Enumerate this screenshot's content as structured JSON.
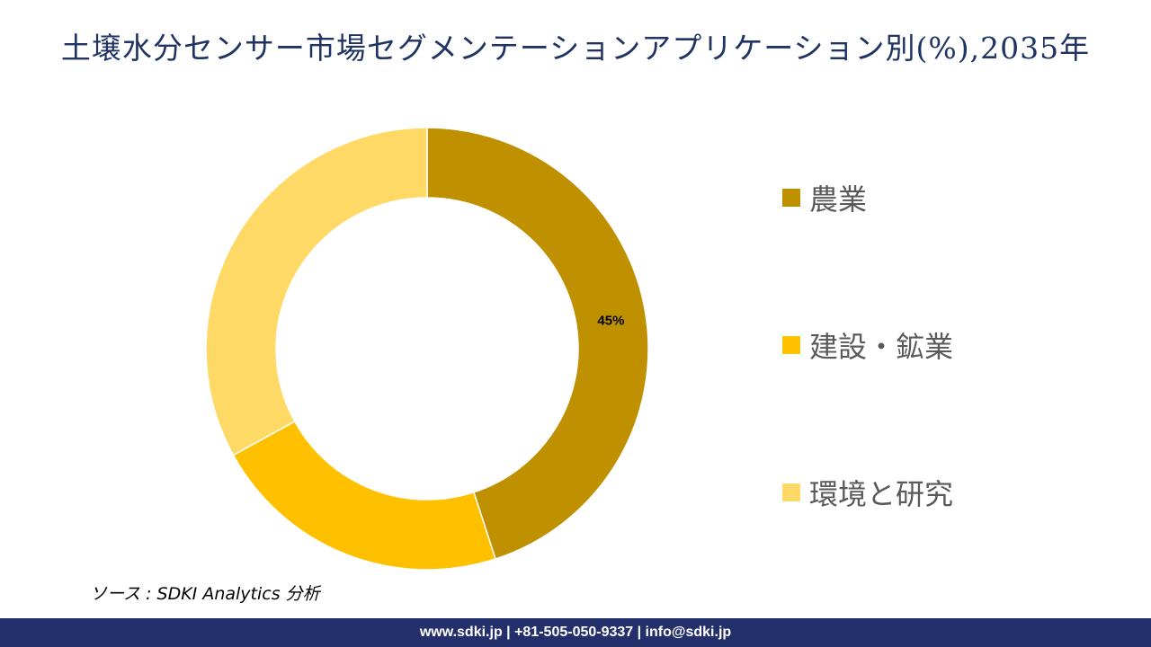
{
  "chart_data": {
    "type": "pie",
    "subtype": "donut",
    "title": "土壌水分センサー市場セグメンテーションアプリケーション別(%),2035年",
    "categories": [
      "農業",
      "建設・鉱業",
      "環境と研究"
    ],
    "values": [
      45,
      22,
      33
    ],
    "data_labels": [
      "45%",
      "",
      ""
    ],
    "colors": [
      "#BF9000",
      "#FFC000",
      "#FFD966"
    ],
    "legend_position": "right"
  },
  "source": "ソース : SDKI Analytics 分析",
  "footer": "www.sdki.jp | +81-505-050-9337 | info@sdki.jp"
}
